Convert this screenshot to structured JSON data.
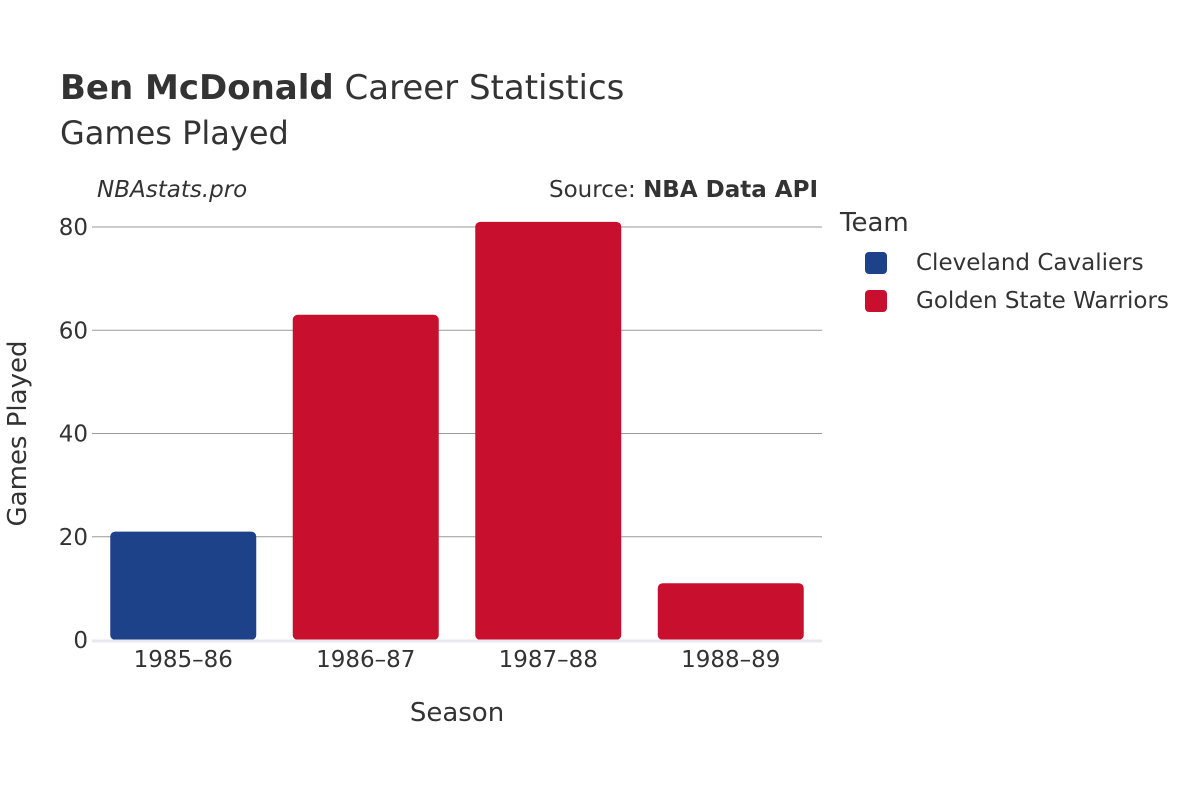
{
  "header": {
    "title_bold": "Ben McDonald",
    "title_rest": " Career Statistics",
    "subtitle": "Games Played",
    "watermark": "NBAstats.pro",
    "source_prefix": "Source: ",
    "source_name": "NBA Data API"
  },
  "legend": {
    "title": "Team",
    "items": [
      {
        "label": "Cleveland Cavaliers",
        "color": "#1d428a"
      },
      {
        "label": "Golden State Warriors",
        "color": "#c8102e"
      }
    ]
  },
  "chart_data": {
    "type": "bar",
    "categories": [
      "1985–86",
      "1986–87",
      "1987–88",
      "1988–89"
    ],
    "values": [
      21,
      63,
      81,
      11
    ],
    "teams": [
      "Cleveland Cavaliers",
      "Golden State Warriors",
      "Golden State Warriors",
      "Golden State Warriors"
    ],
    "colors": [
      "#1d428a",
      "#c8102e",
      "#c8102e",
      "#c8102e"
    ],
    "xlabel": "Season",
    "ylabel": "Games Played",
    "ylim": [
      0,
      80
    ],
    "yticks": [
      0,
      20,
      40,
      60,
      80
    ],
    "grid": true,
    "legend_position": "right"
  }
}
